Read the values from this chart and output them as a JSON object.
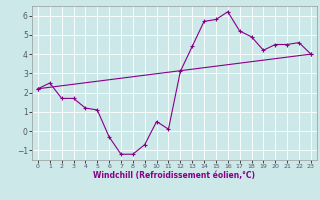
{
  "xlabel": "Windchill (Refroidissement éolien,°C)",
  "bg_color": "#cce8e8",
  "line_color": "#880088",
  "curve1_x": [
    0,
    1,
    2,
    3,
    4,
    5,
    6,
    7,
    8,
    9,
    10,
    11,
    12,
    13,
    14,
    15,
    16,
    17,
    18,
    19,
    20,
    21,
    22,
    23
  ],
  "curve1_y": [
    2.2,
    2.5,
    1.7,
    1.7,
    1.2,
    1.1,
    -0.3,
    -1.2,
    -1.2,
    -0.7,
    0.5,
    0.1,
    3.1,
    4.4,
    5.7,
    5.8,
    6.2,
    5.2,
    4.9,
    4.2,
    4.5,
    4.5,
    4.6,
    4.0
  ],
  "curve2_x": [
    0,
    23
  ],
  "curve2_y": [
    2.2,
    4.0
  ],
  "ylim": [
    -1.5,
    6.5
  ],
  "xlim": [
    -0.5,
    23.5
  ],
  "yticks": [
    -1,
    0,
    1,
    2,
    3,
    4,
    5,
    6
  ],
  "xticks": [
    0,
    1,
    2,
    3,
    4,
    5,
    6,
    7,
    8,
    9,
    10,
    11,
    12,
    13,
    14,
    15,
    16,
    17,
    18,
    19,
    20,
    21,
    22,
    23
  ]
}
